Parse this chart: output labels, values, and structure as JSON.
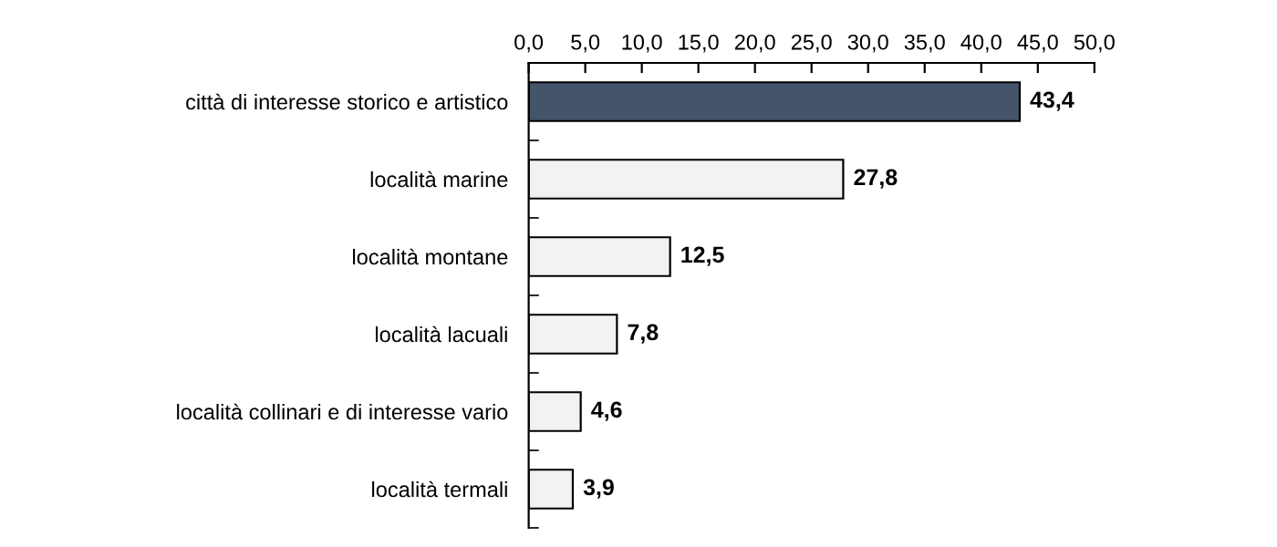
{
  "chart_data": {
    "type": "bar",
    "orientation": "horizontal",
    "categories": [
      "città di interesse storico e artistico",
      "località marine",
      "località montane",
      "località lacuali",
      "località collinari e di interesse vario",
      "località termali"
    ],
    "values": [
      43.4,
      27.8,
      12.5,
      7.8,
      4.6,
      3.9
    ],
    "colors": [
      "#44546a",
      "#f2f2f2",
      "#f2f2f2",
      "#f2f2f2",
      "#f2f2f2",
      "#f2f2f2"
    ],
    "value_labels": [
      "43,4",
      "27,8",
      "12,5",
      "7,8",
      "4,6",
      "3,9"
    ],
    "xlim": [
      0,
      50
    ],
    "xticks": [
      {
        "value": 0,
        "label": "0,0"
      },
      {
        "value": 5,
        "label": "5,0"
      },
      {
        "value": 10,
        "label": "10,0"
      },
      {
        "value": 15,
        "label": "15,0"
      },
      {
        "value": 20,
        "label": "20,0"
      },
      {
        "value": 25,
        "label": "25,0"
      },
      {
        "value": 30,
        "label": "30,0"
      },
      {
        "value": 35,
        "label": "35,0"
      },
      {
        "value": 40,
        "label": "40,0"
      },
      {
        "value": 45,
        "label": "45,0"
      },
      {
        "value": 50,
        "label": "50,0"
      }
    ],
    "grid": false
  }
}
